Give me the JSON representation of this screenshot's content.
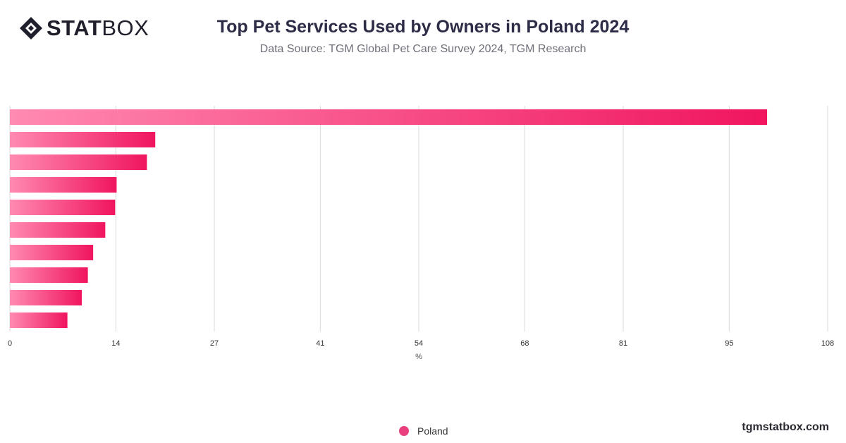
{
  "brand": {
    "logo_name": "diamond-logo-icon",
    "logo_text_bold": "STAT",
    "logo_text_light": "BOX"
  },
  "header": {
    "title": "Top Pet Services Used by Owners in Poland 2024",
    "subtitle": "Data Source: TGM Global Pet Care Survey 2024, TGM Research"
  },
  "colors": {
    "bar_start": "#ff8ab2",
    "bar_end": "#f0155f",
    "grid": "#d9d9d9",
    "legend_dot": "#ea3f7e"
  },
  "chart_data": {
    "type": "bar",
    "orientation": "horizontal",
    "categories": [
      "",
      "",
      "",
      "",
      "",
      "",
      "",
      "",
      "",
      ""
    ],
    "series": [
      {
        "name": "Poland",
        "values": [
          100,
          19.2,
          18.1,
          14.1,
          13.9,
          12.6,
          11,
          10.3,
          9.5,
          7.6
        ]
      }
    ],
    "xlabel": "%",
    "xlim": [
      0,
      108
    ],
    "x_ticks": [
      "0",
      "14",
      "27",
      "41",
      "54",
      "68",
      "81",
      "95",
      "108"
    ],
    "grid": "vertical",
    "legend_position": "bottom"
  },
  "legend": {
    "label": "Poland"
  },
  "footer": {
    "url": "tgmstatbox.com"
  }
}
